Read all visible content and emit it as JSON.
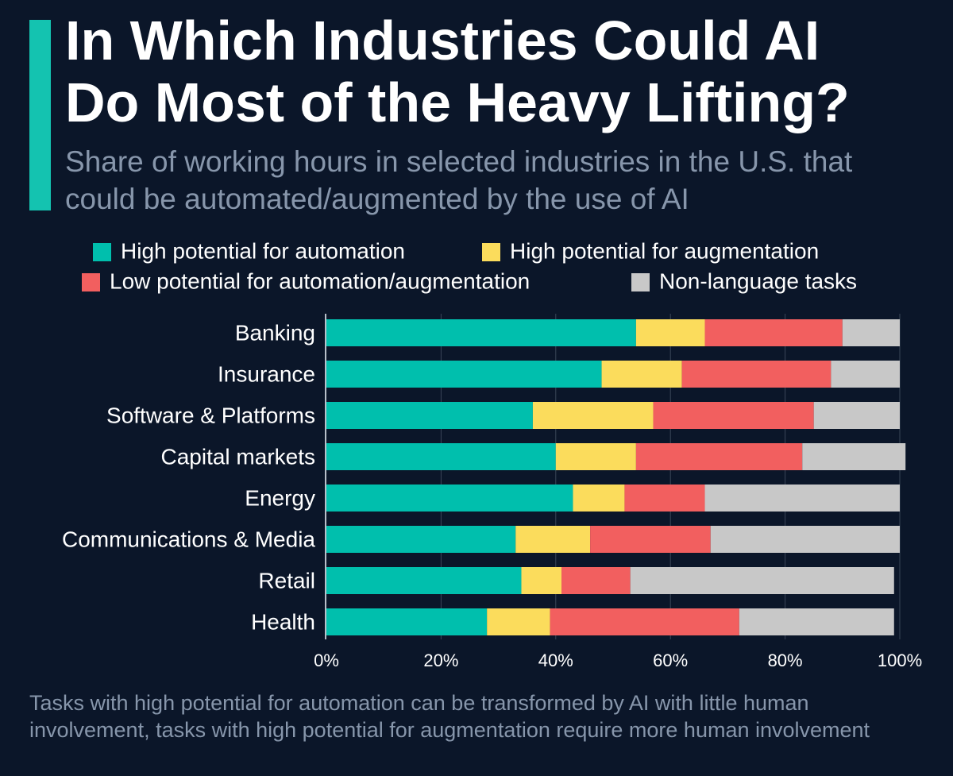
{
  "chart_data": {
    "type": "stacked-bar-horizontal",
    "title": "In Which Industries Could AI Do Most of the Heavy Lifting?",
    "subtitle": "Share of working hours in selected industries in the U.S. that could be automated/augmented by the use of AI",
    "note": "Tasks with high potential for automation can be transformed by AI with little human involvement, tasks with high potential for augmentation require more human involvement",
    "categories": [
      "Banking",
      "Insurance",
      "Software & Platforms",
      "Capital markets",
      "Energy",
      "Communications & Media",
      "Retail",
      "Health"
    ],
    "series": [
      {
        "name": "High potential for automation",
        "color": "#00bfad",
        "values": [
          54,
          48,
          36,
          40,
          43,
          33,
          34,
          28
        ]
      },
      {
        "name": "High potential for augmentation",
        "color": "#fbdc5c",
        "values": [
          12,
          14,
          21,
          14,
          9,
          13,
          7,
          11
        ]
      },
      {
        "name": "Low potential for automation/augmentation",
        "color": "#f25f5f",
        "values": [
          24,
          26,
          28,
          29,
          14,
          21,
          12,
          33
        ]
      },
      {
        "name": "Non-language tasks",
        "color": "#c8c8c8",
        "values": [
          10,
          12,
          15,
          18,
          34,
          33,
          46,
          27
        ]
      }
    ],
    "xlim": [
      0,
      100
    ],
    "xticks": [
      {
        "value": 0,
        "label": "0%"
      },
      {
        "value": 20,
        "label": "20%"
      },
      {
        "value": 40,
        "label": "40%"
      },
      {
        "value": 60,
        "label": "60%"
      },
      {
        "value": 80,
        "label": "80%"
      },
      {
        "value": 100,
        "label": "100%"
      }
    ],
    "grid": true,
    "legend": "top"
  }
}
